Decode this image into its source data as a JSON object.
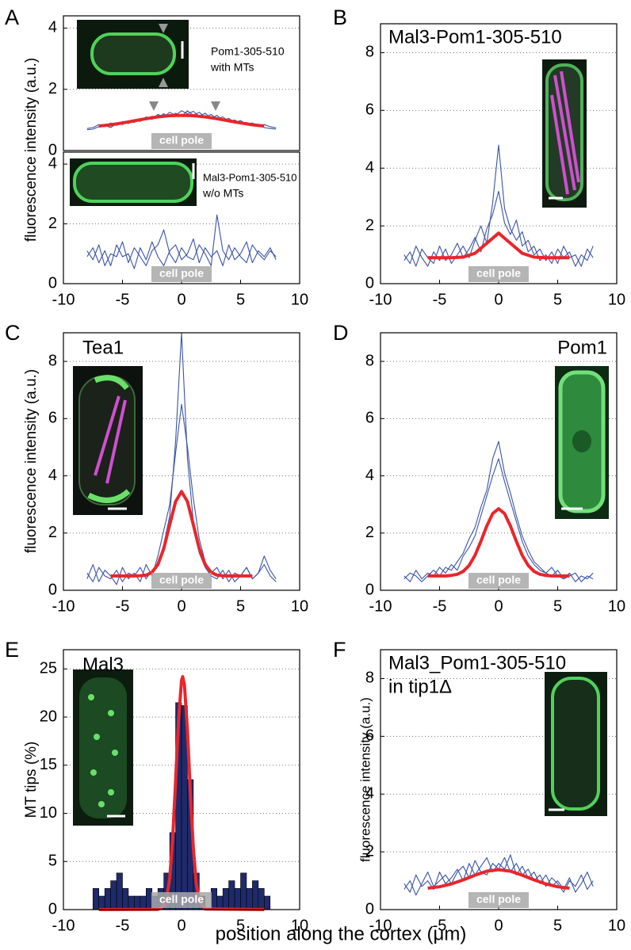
{
  "chart_data": [
    {
      "type": "line",
      "panel": "A",
      "ylabel": "fluorescence intensity (a.u.)",
      "inset_text": [
        "Pom1-305-510",
        "with MTs"
      ],
      "annotation": "cell pole",
      "xlim": [
        -10,
        10
      ],
      "ylim": [
        0,
        4.4
      ],
      "yticks": [
        0,
        2,
        4
      ],
      "grid": true,
      "x": [
        -8,
        -7.5,
        -7,
        -6.5,
        -6,
        -5.5,
        -5,
        -4.5,
        -4,
        -3.5,
        -3,
        -2.5,
        -2,
        -1.5,
        -1,
        -0.5,
        0,
        0.5,
        1,
        1.5,
        2,
        2.5,
        3,
        3.5,
        4,
        4.5,
        5,
        5.5,
        6,
        6.5,
        7,
        7.5,
        8
      ],
      "series": [
        {
          "color": "#3a53a4",
          "values": [
            0.72,
            0.75,
            0.85,
            0.78,
            0.9,
            0.82,
            0.95,
            0.88,
            1.0,
            0.95,
            1.1,
            1.02,
            1.18,
            1.1,
            1.25,
            1.15,
            1.3,
            1.2,
            1.28,
            1.12,
            1.22,
            1.05,
            1.15,
            0.98,
            1.05,
            0.92,
            0.98,
            0.85,
            0.9,
            0.8,
            0.85,
            0.78,
            0.74
          ]
        },
        {
          "color": "#3a53a4",
          "values": [
            0.68,
            0.7,
            0.78,
            0.82,
            0.75,
            0.88,
            0.85,
            0.95,
            0.92,
            1.05,
            1.0,
            1.12,
            1.08,
            1.2,
            1.1,
            1.22,
            1.12,
            1.3,
            1.15,
            1.25,
            1.08,
            1.18,
            1.02,
            1.1,
            0.95,
            1.0,
            0.88,
            0.92,
            0.82,
            0.85,
            0.75,
            0.72,
            0.7
          ]
        },
        {
          "color": "#e8262b",
          "x": [
            -7,
            -6,
            -5,
            -4,
            -3,
            -2,
            -1,
            0,
            1,
            2,
            3,
            4,
            5,
            6,
            7
          ],
          "values": [
            0.8,
            0.84,
            0.9,
            0.97,
            1.04,
            1.1,
            1.14,
            1.15,
            1.14,
            1.1,
            1.04,
            0.97,
            0.9,
            0.84,
            0.8
          ]
        }
      ]
    },
    {
      "type": "line",
      "inset_text": [
        "Mal3-Pom1-305-510",
        "w/o MTs"
      ],
      "annotation": "cell pole",
      "xlim": [
        -10,
        10
      ],
      "ylim": [
        0,
        4.4
      ],
      "xticks": [
        -10,
        -5,
        0,
        5,
        10
      ],
      "yticks": [
        0,
        2,
        4
      ],
      "grid": true,
      "x": [
        -8,
        -7.5,
        -7,
        -6.5,
        -6,
        -5.5,
        -5,
        -4.5,
        -4,
        -3.5,
        -3,
        -2.5,
        -2,
        -1.5,
        -1,
        -0.5,
        0,
        0.5,
        1,
        1.5,
        2,
        2.5,
        3,
        3.5,
        4,
        4.5,
        5,
        5.5,
        6,
        6.5,
        7,
        7.5,
        8
      ],
      "series": [
        {
          "color": "#3a53a4",
          "values": [
            0.9,
            1.2,
            0.7,
            1.1,
            0.6,
            1.3,
            0.9,
            1.0,
            0.5,
            1.2,
            0.8,
            1.4,
            0.9,
            0.6,
            1.1,
            1.3,
            0.8,
            1.0,
            1.5,
            0.7,
            1.2,
            0.9,
            1.1,
            0.6,
            1.3,
            0.8,
            1.0,
            1.4,
            0.7,
            1.1,
            0.9,
            1.2,
            0.8
          ]
        },
        {
          "color": "#3a53a4",
          "values": [
            1.1,
            0.8,
            1.3,
            0.6,
            1.0,
            0.9,
            1.4,
            0.7,
            1.2,
            0.9,
            0.6,
            1.1,
            1.3,
            1.8,
            1.0,
            0.7,
            1.2,
            0.9,
            0.8,
            1.3,
            1.0,
            0.6,
            2.3,
            1.1,
            0.8,
            1.2,
            0.9,
            0.7,
            1.3,
            1.0,
            0.8,
            1.1,
            0.9
          ]
        }
      ]
    },
    {
      "type": "line",
      "panel": "B",
      "title": "Mal3-Pom1-305-510",
      "annotation": "cell pole",
      "xlim": [
        -10,
        10
      ],
      "ylim": [
        0,
        9
      ],
      "xticks": [
        -10,
        -5,
        0,
        5,
        10
      ],
      "yticks": [
        0,
        2,
        4,
        6,
        8
      ],
      "grid": true,
      "x": [
        -8,
        -7.5,
        -7,
        -6.5,
        -6,
        -5.5,
        -5,
        -4.5,
        -4,
        -3.5,
        -3,
        -2.5,
        -2,
        -1.5,
        -1,
        -0.5,
        0,
        0.5,
        1,
        1.5,
        2,
        2.5,
        3,
        3.5,
        4,
        4.5,
        5,
        5.5,
        6,
        6.5,
        7,
        7.5,
        8
      ],
      "series": [
        {
          "color": "#3a53a4",
          "values": [
            0.8,
            1.1,
            0.6,
            1.2,
            0.9,
            0.7,
            1.3,
            0.8,
            1.0,
            1.4,
            0.9,
            1.2,
            1.6,
            1.1,
            1.9,
            2.4,
            3.2,
            2.1,
            1.7,
            2.2,
            1.3,
            1.5,
            1.0,
            1.2,
            0.8,
            1.1,
            0.7,
            1.3,
            0.9,
            1.0,
            0.6,
            1.2,
            0.9
          ]
        },
        {
          "color": "#3a53a4",
          "values": [
            1.0,
            0.7,
            1.3,
            0.9,
            0.6,
            1.1,
            0.8,
            1.2,
            0.7,
            1.0,
            1.3,
            0.9,
            1.5,
            2.0,
            1.4,
            2.8,
            4.8,
            2.6,
            1.9,
            1.5,
            1.8,
            1.1,
            1.3,
            0.8,
            1.0,
            0.7,
            1.2,
            0.9,
            1.1,
            0.6,
            1.0,
            0.8,
            1.3
          ]
        },
        {
          "color": "#e8262b",
          "x": [
            -6,
            -5,
            -4,
            -3,
            -2,
            -1,
            0,
            1,
            2,
            3,
            4,
            5,
            6
          ],
          "values": [
            0.9,
            0.9,
            0.9,
            0.92,
            1.05,
            1.4,
            1.75,
            1.4,
            1.05,
            0.92,
            0.9,
            0.9,
            0.9
          ]
        }
      ]
    },
    {
      "type": "line",
      "panel": "C",
      "title": "Tea1",
      "ylabel": "fluorescence intensity (a.u.)",
      "annotation": "cell pole",
      "xlim": [
        -10,
        10
      ],
      "ylim": [
        0,
        9
      ],
      "xticks": [
        -10,
        -5,
        0,
        5,
        10
      ],
      "yticks": [
        0,
        2,
        4,
        6,
        8
      ],
      "grid": true,
      "x": [
        -8,
        -7.5,
        -7,
        -6.5,
        -6,
        -5.5,
        -5,
        -4.5,
        -4,
        -3.5,
        -3,
        -2.5,
        -2,
        -1.5,
        -1,
        -0.5,
        0,
        0.5,
        1,
        1.5,
        2,
        2.5,
        3,
        3.5,
        4,
        4.5,
        5,
        5.5,
        6,
        6.5,
        7,
        7.5,
        8
      ],
      "series": [
        {
          "color": "#3a53a4",
          "values": [
            0.4,
            0.9,
            0.3,
            0.7,
            0.5,
            0.2,
            0.8,
            0.4,
            0.6,
            0.3,
            0.9,
            0.5,
            1.2,
            2.1,
            3.0,
            4.8,
            6.5,
            5.0,
            3.2,
            1.8,
            1.0,
            0.6,
            0.8,
            0.4,
            0.7,
            0.3,
            0.5,
            0.8,
            0.4,
            0.6,
            0.9,
            0.5,
            0.3
          ]
        },
        {
          "color": "#3a53a4",
          "values": [
            0.6,
            0.3,
            0.8,
            0.5,
            0.4,
            0.7,
            0.3,
            0.6,
            0.5,
            0.8,
            0.4,
            0.7,
            0.9,
            1.6,
            2.6,
            5.2,
            9.0,
            4.6,
            2.4,
            1.3,
            0.8,
            0.5,
            0.4,
            0.7,
            0.3,
            0.6,
            0.5,
            0.8,
            0.4,
            0.6,
            1.2,
            0.7,
            0.4
          ]
        },
        {
          "color": "#e8262b",
          "x": [
            -6,
            -5.5,
            -5,
            -4.5,
            -4,
            -3.5,
            -3,
            -2.5,
            -2,
            -1.5,
            -1,
            -0.5,
            0,
            0.5,
            1,
            1.5,
            2,
            2.5,
            3,
            3.5,
            4,
            4.5,
            5,
            5.5,
            6
          ],
          "values": [
            0.5,
            0.5,
            0.5,
            0.5,
            0.5,
            0.51,
            0.53,
            0.63,
            0.9,
            1.46,
            2.29,
            3.1,
            3.45,
            3.1,
            2.29,
            1.46,
            0.9,
            0.63,
            0.53,
            0.51,
            0.5,
            0.5,
            0.5,
            0.5,
            0.5
          ]
        }
      ]
    },
    {
      "type": "line",
      "panel": "D",
      "title": "Pom1",
      "annotation": "cell pole",
      "xlim": [
        -10,
        10
      ],
      "ylim": [
        0,
        9
      ],
      "xticks": [
        -10,
        -5,
        0,
        5,
        10
      ],
      "yticks": [
        0,
        2,
        4,
        6,
        8
      ],
      "grid": true,
      "x": [
        -8,
        -7.5,
        -7,
        -6.5,
        -6,
        -5.5,
        -5,
        -4.5,
        -4,
        -3.5,
        -3,
        -2.5,
        -2,
        -1.5,
        -1,
        -0.5,
        0,
        0.5,
        1,
        1.5,
        2,
        2.5,
        3,
        3.5,
        4,
        4.5,
        5,
        5.5,
        6,
        6.5,
        7,
        7.5,
        8
      ],
      "series": [
        {
          "color": "#3a53a4",
          "values": [
            0.5,
            0.3,
            0.7,
            0.4,
            0.6,
            0.5,
            0.8,
            0.6,
            0.9,
            0.7,
            1.2,
            1.5,
            1.9,
            2.6,
            3.3,
            4.0,
            4.6,
            3.8,
            3.1,
            2.4,
            1.7,
            1.2,
            0.9,
            0.7,
            0.6,
            0.8,
            0.5,
            0.4,
            0.6,
            0.3,
            0.5,
            0.4,
            0.6
          ]
        },
        {
          "color": "#3a53a4",
          "values": [
            0.4,
            0.6,
            0.5,
            0.3,
            0.5,
            0.7,
            0.5,
            0.8,
            0.7,
            1.0,
            1.3,
            1.8,
            2.2,
            2.9,
            3.5,
            4.6,
            5.2,
            4.1,
            3.4,
            2.6,
            1.9,
            1.4,
            1.0,
            0.8,
            0.6,
            0.5,
            0.7,
            0.4,
            0.5,
            0.6,
            0.3,
            0.5,
            0.4
          ]
        },
        {
          "color": "#e8262b",
          "x": [
            -6,
            -5.5,
            -5,
            -4.5,
            -4,
            -3.5,
            -3,
            -2.5,
            -2,
            -1.5,
            -1,
            -0.5,
            0,
            0.5,
            1,
            1.5,
            2,
            2.5,
            3,
            3.5,
            4,
            4.5,
            5,
            5.5,
            6
          ],
          "values": [
            0.5,
            0.5,
            0.5,
            0.5,
            0.52,
            0.56,
            0.66,
            0.87,
            1.22,
            1.71,
            2.25,
            2.68,
            2.85,
            2.68,
            2.25,
            1.71,
            1.22,
            0.87,
            0.66,
            0.56,
            0.52,
            0.5,
            0.5,
            0.5,
            0.5
          ]
        }
      ]
    },
    {
      "type": "histogram",
      "panel": "E",
      "title": "Mal3",
      "ylabel": "MT tips  (%)",
      "xlabel": "position along the cortex (μm)",
      "annotation": "cell pole",
      "xlim": [
        -10,
        10
      ],
      "ylim": [
        0,
        27
      ],
      "xticks": [
        -10,
        -5,
        0,
        5,
        10
      ],
      "yticks": [
        0,
        5,
        10,
        15,
        20,
        25
      ],
      "grid": true,
      "color": "#1f2a6b",
      "bins": [
        -7.5,
        -7,
        -6.5,
        -6,
        -5.5,
        -5,
        -4.5,
        -4,
        -3.5,
        -3,
        -2.5,
        -2,
        -1.5,
        -1,
        -0.5,
        0,
        0.5,
        1,
        1.5,
        2,
        2.5,
        3,
        3.5,
        4,
        4.5,
        5,
        5.5,
        6,
        6.5,
        7,
        7.5
      ],
      "values": [
        2.2,
        1.4,
        2.2,
        3.0,
        3.8,
        2.2,
        1.4,
        1.4,
        1.4,
        2.2,
        1.4,
        2.2,
        3.8,
        8.0,
        21.5,
        21.2,
        13.5,
        3.8,
        1.4,
        0,
        2.2,
        1.4,
        2.2,
        3.0,
        2.2,
        3.8,
        2.2,
        3.0,
        2.2,
        1.4
      ],
      "series": [
        {
          "color": "#e8262b",
          "x": [
            -7,
            -2,
            -1.5,
            -1.25,
            -1,
            -0.75,
            -0.5,
            -0.25,
            0,
            0.1,
            0.25,
            0.5,
            0.75,
            1,
            1.25,
            1.5,
            2,
            7
          ],
          "values": [
            0,
            0.02,
            0.35,
            1.19,
            3.27,
            7.34,
            13.35,
            19.77,
            23.8,
            24.2,
            23.3,
            18.6,
            12.0,
            6.34,
            2.71,
            0.94,
            0.06,
            0
          ]
        }
      ]
    },
    {
      "type": "line",
      "panel": "F",
      "title": "Mal3_Pom1-305-510",
      "subtitle": "in tip1Δ",
      "ylabel": "fluorescence intensity (a.u.)",
      "annotation": "cell pole",
      "xlim": [
        -10,
        10
      ],
      "ylim": [
        0,
        9
      ],
      "xticks": [
        -10,
        -5,
        0,
        5,
        10
      ],
      "yticks": [
        0,
        2,
        4,
        6,
        8
      ],
      "grid": true,
      "x": [
        -8,
        -7.5,
        -7,
        -6.5,
        -6,
        -5.5,
        -5,
        -4.5,
        -4,
        -3.5,
        -3,
        -2.5,
        -2,
        -1.5,
        -1,
        -0.5,
        0,
        0.5,
        1,
        1.5,
        2,
        2.5,
        3,
        3.5,
        4,
        4.5,
        5,
        5.5,
        6,
        6.5,
        7,
        7.5,
        8
      ],
      "series": [
        {
          "color": "#3a53a4",
          "values": [
            0.9,
            0.6,
            1.2,
            0.8,
            1.0,
            0.7,
            1.3,
            0.9,
            1.1,
            1.4,
            1.0,
            1.6,
            1.2,
            1.5,
            1.8,
            1.3,
            1.6,
            1.4,
            1.9,
            1.2,
            1.5,
            1.1,
            1.3,
            0.9,
            1.2,
            0.8,
            1.0,
            0.7,
            1.1,
            0.6,
            0.9,
            1.3,
            0.8
          ]
        },
        {
          "color": "#3a53a4",
          "values": [
            0.7,
            1.0,
            0.5,
            0.9,
            1.3,
            0.8,
            1.0,
            1.2,
            0.9,
            1.3,
            1.5,
            1.1,
            1.7,
            1.3,
            1.2,
            1.6,
            1.4,
            1.8,
            1.3,
            1.6,
            1.2,
            1.4,
            1.0,
            1.2,
            0.8,
            1.1,
            0.9,
            0.6,
            1.0,
            0.8,
            1.2,
            0.7,
            1.0
          ]
        },
        {
          "color": "#e8262b",
          "x": [
            -6,
            -5,
            -4,
            -3,
            -2,
            -1,
            0,
            1,
            2,
            3,
            4,
            5,
            6
          ],
          "values": [
            0.74,
            0.79,
            0.89,
            1.03,
            1.19,
            1.33,
            1.38,
            1.33,
            1.19,
            1.03,
            0.89,
            0.79,
            0.74
          ]
        }
      ]
    }
  ]
}
